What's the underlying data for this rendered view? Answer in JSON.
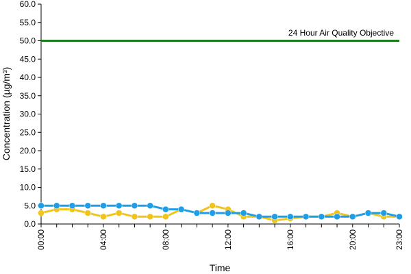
{
  "chart_data": {
    "type": "line",
    "title": "",
    "xlabel": "Time",
    "ylabel": "Concentration (µg/m³)",
    "ylim": [
      0,
      60
    ],
    "yticks": [
      "0.0",
      "5.0",
      "10.0",
      "15.0",
      "20.0",
      "25.0",
      "30.0",
      "35.0",
      "40.0",
      "45.0",
      "50.0",
      "55.0",
      "60.0"
    ],
    "xtick_labels": [
      "00:00",
      "04:00",
      "08:00",
      "12:00",
      "16:00",
      "20:00",
      "23:00"
    ],
    "xtick_hours": [
      0,
      4,
      8,
      12,
      16,
      20,
      23
    ],
    "x": [
      0,
      1,
      2,
      3,
      4,
      5,
      6,
      7,
      8,
      9,
      10,
      11,
      12,
      13,
      14,
      15,
      16,
      17,
      18,
      19,
      20,
      21,
      22,
      23
    ],
    "grid": false,
    "legend": "none",
    "series": [
      {
        "color": "#f0c419",
        "values": [
          3,
          4,
          4,
          3,
          2,
          3,
          2,
          2,
          2,
          4,
          3,
          5,
          4,
          2,
          2,
          1,
          1.5,
          2,
          2,
          3,
          2,
          3,
          2,
          2
        ]
      },
      {
        "color": "#1f9ee8",
        "values": [
          5,
          5,
          5,
          5,
          5,
          5,
          5,
          5,
          4,
          4,
          3,
          3,
          3,
          3,
          2,
          2,
          2,
          2,
          2,
          2,
          2,
          3,
          3,
          2
        ]
      }
    ],
    "objective": {
      "label": "24 Hour Air Quality Objective",
      "value": 50,
      "color": "#1e7a1e"
    }
  }
}
